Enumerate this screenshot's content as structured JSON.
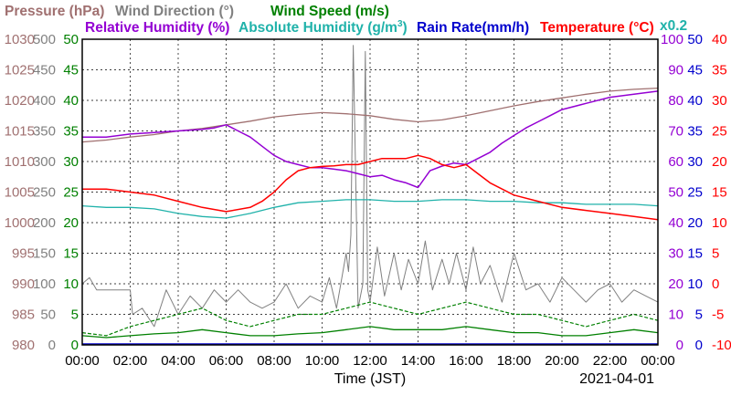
{
  "chart_data": {
    "type": "line",
    "date": "2021-04-01",
    "x_axis": {
      "label": "Time (JST)",
      "ticks": [
        "00:00",
        "02:00",
        "04:00",
        "06:00",
        "08:00",
        "10:00",
        "12:00",
        "14:00",
        "16:00",
        "18:00",
        "20:00",
        "22:00",
        "00:00"
      ],
      "range_hours": [
        0,
        24
      ]
    },
    "grid": true,
    "titles": {
      "pressure": "Pressure (hPa)",
      "wind_direction": "Wind Direction (°)",
      "wind_speed": "Wind Speed (m/s)",
      "relative_humidity": "Relative Humidity (%)",
      "absolute_humidity_prefix": "Absolute Humidity (g/m",
      "absolute_humidity_sup": "3",
      "absolute_humidity_suffix": ")",
      "rain_rate": "Rain Rate(mm/h)",
      "temperature": "Temperature (°C)",
      "abs_humidity_scale": "x0.2"
    },
    "colors": {
      "pressure": "#a07070",
      "wind_direction": "#808080",
      "wind_speed": "#008000",
      "relative_humidity": "#9400d3",
      "absolute_humidity": "#20b2aa",
      "rain_rate": "#0000cd",
      "temperature": "#ff0000"
    },
    "axes": {
      "pressure_ticks": [
        "1030",
        "1025",
        "1020",
        "1015",
        "1010",
        "1005",
        "1000",
        "995",
        "990",
        "985",
        "980"
      ],
      "wind_direction_ticks": [
        "500",
        "450",
        "400",
        "350",
        "300",
        "250",
        "200",
        "150",
        "100",
        "50",
        "0"
      ],
      "wind_speed_ticks": [
        "50",
        "45",
        "40",
        "35",
        "30",
        "25",
        "20",
        "15",
        "10",
        "5",
        "0"
      ],
      "humidity_ticks": [
        "100",
        "90",
        "80",
        "70",
        "60",
        "50",
        "40",
        "30",
        "20",
        "10",
        "0"
      ],
      "rain_ticks": [
        "50",
        "45",
        "40",
        "35",
        "30",
        "25",
        "20",
        "15",
        "10",
        "5",
        "0"
      ],
      "temperature_ticks": [
        "40",
        "35",
        "30",
        "25",
        "20",
        "15",
        "10",
        "5",
        "0",
        "-5",
        "-10"
      ],
      "pressure_range": [
        980,
        1030
      ],
      "humidity_range": [
        0,
        100
      ],
      "wind_direction_range": [
        0,
        500
      ],
      "wind_speed_range": [
        0,
        50
      ],
      "temperature_range": [
        -10,
        40
      ]
    },
    "series": [
      {
        "key": "pressure",
        "name": "Pressure (hPa)",
        "x": [
          0,
          1,
          2,
          3,
          4,
          5,
          6,
          7,
          8,
          9,
          10,
          11,
          12,
          13,
          14,
          15,
          16,
          17,
          18,
          19,
          20,
          21,
          22,
          23,
          24
        ],
        "values": [
          1013.2,
          1013.5,
          1014.0,
          1014.4,
          1015.0,
          1015.4,
          1016.0,
          1016.6,
          1017.3,
          1017.7,
          1018.0,
          1017.8,
          1017.5,
          1016.9,
          1016.5,
          1016.8,
          1017.5,
          1018.3,
          1019.1,
          1019.8,
          1020.4,
          1021.0,
          1021.5,
          1021.8,
          1022.0
        ]
      },
      {
        "key": "relative_humidity",
        "name": "Relative Humidity (%)",
        "x": [
          0,
          1,
          2,
          3,
          4,
          5,
          5.5,
          6,
          6.5,
          7,
          7.5,
          8,
          8.5,
          9,
          9.5,
          10,
          10.5,
          11,
          11.5,
          12,
          12.5,
          13,
          13.5,
          14,
          14.5,
          15,
          15.5,
          16,
          16.5,
          17,
          17.5,
          18,
          18.5,
          19,
          19.5,
          20,
          21,
          22,
          23,
          24
        ],
        "values": [
          68,
          68,
          69,
          69.5,
          70,
          70.5,
          71,
          72,
          70,
          68,
          65,
          62,
          60,
          59,
          58,
          58,
          57.5,
          57,
          56,
          55,
          55.5,
          54,
          53,
          51.5,
          57,
          58.5,
          59.5,
          59,
          61,
          63,
          66,
          68.5,
          71,
          73,
          75,
          77,
          79,
          81,
          82,
          83
        ]
      },
      {
        "key": "absolute_humidity",
        "name": "Absolute Humidity (g/m3)",
        "x": [
          0,
          1,
          2,
          3,
          4,
          5,
          6,
          7,
          8,
          9,
          10,
          11,
          12,
          13,
          14,
          15,
          16,
          17,
          18,
          19,
          20,
          21,
          22,
          23,
          24
        ],
        "values": [
          45.5,
          45,
          45,
          44.5,
          43,
          42,
          41.5,
          43,
          45,
          46.5,
          47,
          47.5,
          47.5,
          47,
          47,
          47.5,
          47.5,
          47,
          47,
          46.5,
          46.5,
          46,
          46,
          46,
          45.5
        ]
      },
      {
        "key": "temperature",
        "name": "Temperature (°C)",
        "x": [
          0,
          1,
          2,
          3,
          4,
          5,
          6,
          7,
          7.5,
          8,
          8.5,
          9,
          9.5,
          10,
          10.5,
          11,
          11.5,
          12,
          12.5,
          13,
          13.5,
          14,
          14.5,
          15,
          15.5,
          16,
          16.5,
          17,
          18,
          19,
          20,
          21,
          22,
          23,
          24
        ],
        "values": [
          15.5,
          15.5,
          15,
          14.5,
          13.5,
          12.5,
          11.8,
          12.5,
          13.5,
          15,
          17,
          18.5,
          19,
          19.2,
          19.3,
          19.5,
          19.5,
          20,
          20.5,
          20.5,
          20.5,
          21,
          20.5,
          19.5,
          19,
          19.5,
          18,
          16.5,
          14.5,
          13.5,
          12.5,
          12,
          11.5,
          11,
          10.5
        ]
      },
      {
        "key": "wind_direction",
        "name": "Wind Direction (°)",
        "x": [
          0,
          0.3,
          0.6,
          1,
          1.5,
          2,
          2.1,
          2.5,
          3,
          3.5,
          4,
          4.5,
          5,
          5.5,
          6,
          6.5,
          7,
          7.5,
          8,
          8.5,
          9,
          9.5,
          10,
          10.3,
          10.6,
          11,
          11.1,
          11.2,
          11.3,
          11.5,
          11.7,
          11.8,
          11.9,
          12,
          12.3,
          12.6,
          13,
          13.3,
          13.6,
          14,
          14.3,
          14.6,
          15,
          15.3,
          15.6,
          16,
          16.3,
          16.6,
          17,
          17.5,
          18,
          18.5,
          19,
          19.5,
          20,
          20.5,
          21,
          21.5,
          22,
          22.5,
          23,
          23.5,
          24
        ],
        "values": [
          100,
          110,
          90,
          90,
          90,
          90,
          50,
          60,
          30,
          90,
          50,
          80,
          60,
          90,
          70,
          90,
          70,
          60,
          70,
          100,
          60,
          80,
          70,
          110,
          60,
          150,
          120,
          180,
          490,
          60,
          100,
          480,
          90,
          70,
          160,
          80,
          150,
          90,
          140,
          100,
          170,
          90,
          140,
          100,
          150,
          90,
          160,
          100,
          130,
          70,
          150,
          90,
          100,
          70,
          110,
          90,
          70,
          90,
          100,
          70,
          90,
          80,
          70
        ]
      },
      {
        "key": "wind_speed",
        "name": "Wind Speed (m/s)",
        "x": [
          0,
          1,
          2,
          3,
          4,
          5,
          6,
          7,
          8,
          9,
          10,
          11,
          12,
          13,
          14,
          15,
          16,
          17,
          18,
          19,
          20,
          21,
          22,
          23,
          24
        ],
        "values": [
          1.5,
          1.2,
          1.5,
          1.8,
          2,
          2.5,
          2,
          1.5,
          1.5,
          1.8,
          2,
          2.5,
          3,
          2.5,
          2.5,
          2.5,
          3,
          2.5,
          2,
          2,
          1.5,
          1.5,
          2,
          2.5,
          2
        ]
      },
      {
        "key": "wind_gust",
        "name": "",
        "x": [
          0,
          1,
          2,
          3,
          4,
          5,
          6,
          7,
          8,
          9,
          10,
          11,
          12,
          13,
          14,
          15,
          16,
          17,
          18,
          19,
          20,
          21,
          22,
          23,
          24
        ],
        "values": [
          2,
          1.5,
          3,
          4,
          5,
          6,
          4,
          3,
          4,
          5,
          5,
          6,
          7,
          6,
          5,
          6,
          7,
          6,
          5,
          5,
          4,
          3,
          4,
          5,
          4
        ]
      }
    ]
  }
}
